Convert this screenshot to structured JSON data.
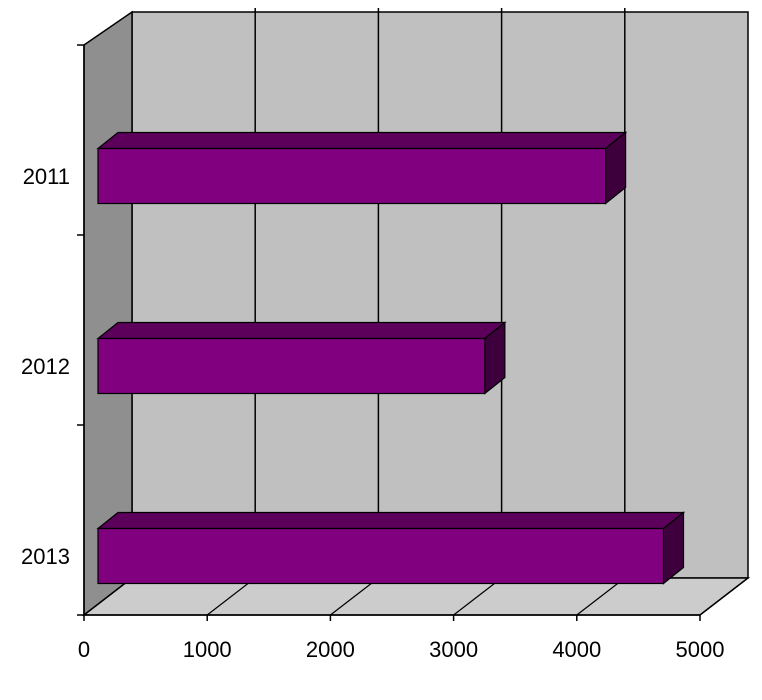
{
  "chart_data": {
    "type": "bar",
    "orientation": "horizontal",
    "style": "3d",
    "categories": [
      "2011",
      "2012",
      "2013"
    ],
    "values": [
      4250,
      3270,
      4720
    ],
    "xlim": [
      0,
      5000
    ],
    "x_ticks": [
      "0",
      "1000",
      "2000",
      "3000",
      "4000",
      "5000"
    ],
    "grid": true,
    "legend": "none",
    "title": "",
    "xlabel": "",
    "ylabel": "",
    "colors": {
      "bar_front": "#800080",
      "bar_top": "#5c005c",
      "bar_side": "#3d003d",
      "back_wall": "#c0c0c0",
      "side_wall": "#8f8f8f",
      "floor": "#cccccc",
      "gridline": "#000000"
    }
  }
}
